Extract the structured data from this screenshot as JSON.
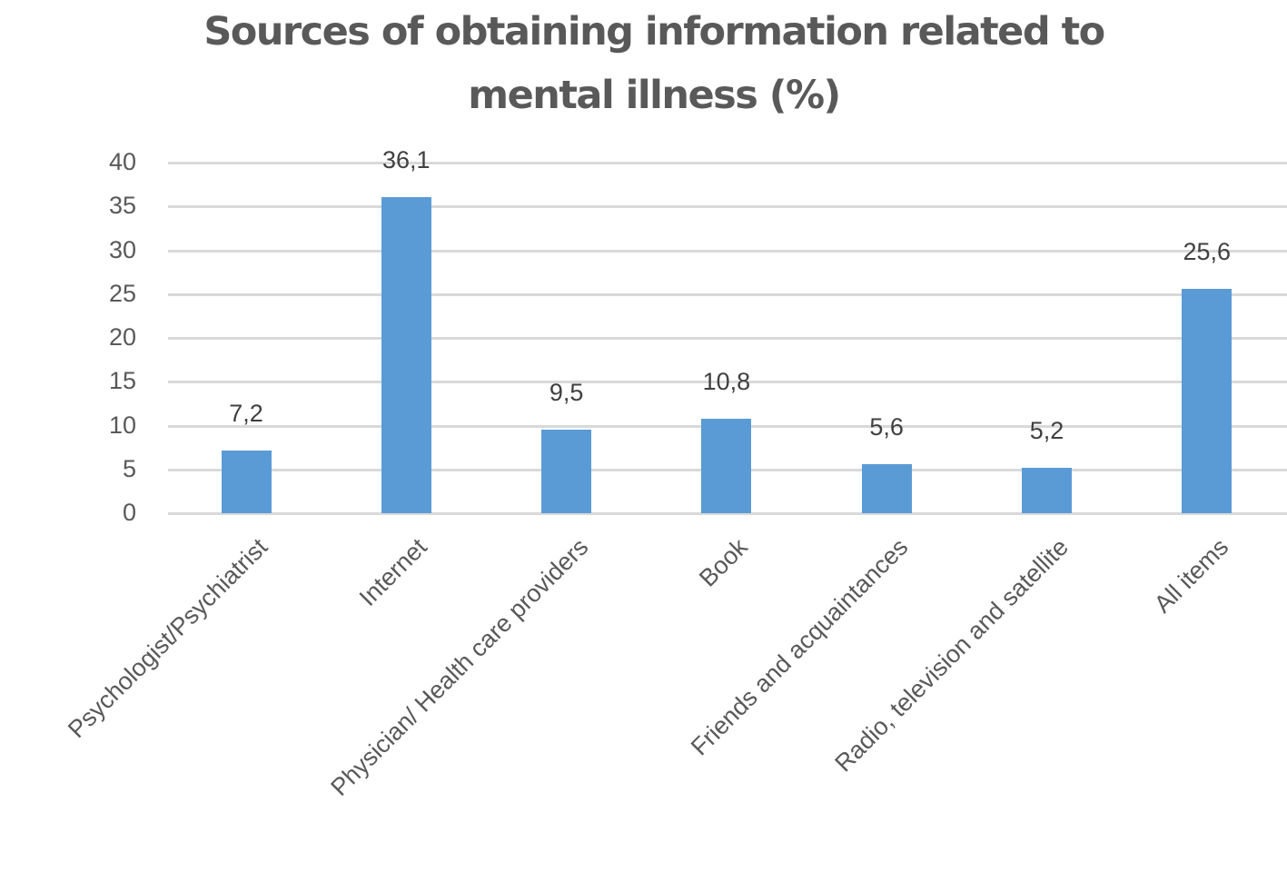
{
  "chart_data": {
    "type": "bar",
    "title": "Sources of obtaining information related to mental illness (%)",
    "title_lines": [
      "Sources of obtaining information related to",
      "mental illness (%)"
    ],
    "xlabel": "",
    "ylabel": "",
    "ylim": [
      0,
      40
    ],
    "yticks": [
      0,
      5,
      10,
      15,
      20,
      25,
      30,
      35,
      40
    ],
    "grid": true,
    "legend": null,
    "bar_color": "#5b9bd5",
    "categories": [
      "Psychologist/Psychiatrist",
      "Internet",
      "Physician/ Health care providers",
      "Book",
      "Friends and acquaintances",
      "Radio, television and satellite",
      "All items"
    ],
    "values": [
      7.2,
      36.1,
      9.5,
      10.8,
      5.6,
      5.2,
      25.6
    ],
    "data_labels": [
      "7,2",
      "36,1",
      "9,5",
      "10,8",
      "5,6",
      "5,2",
      "25,6"
    ]
  }
}
